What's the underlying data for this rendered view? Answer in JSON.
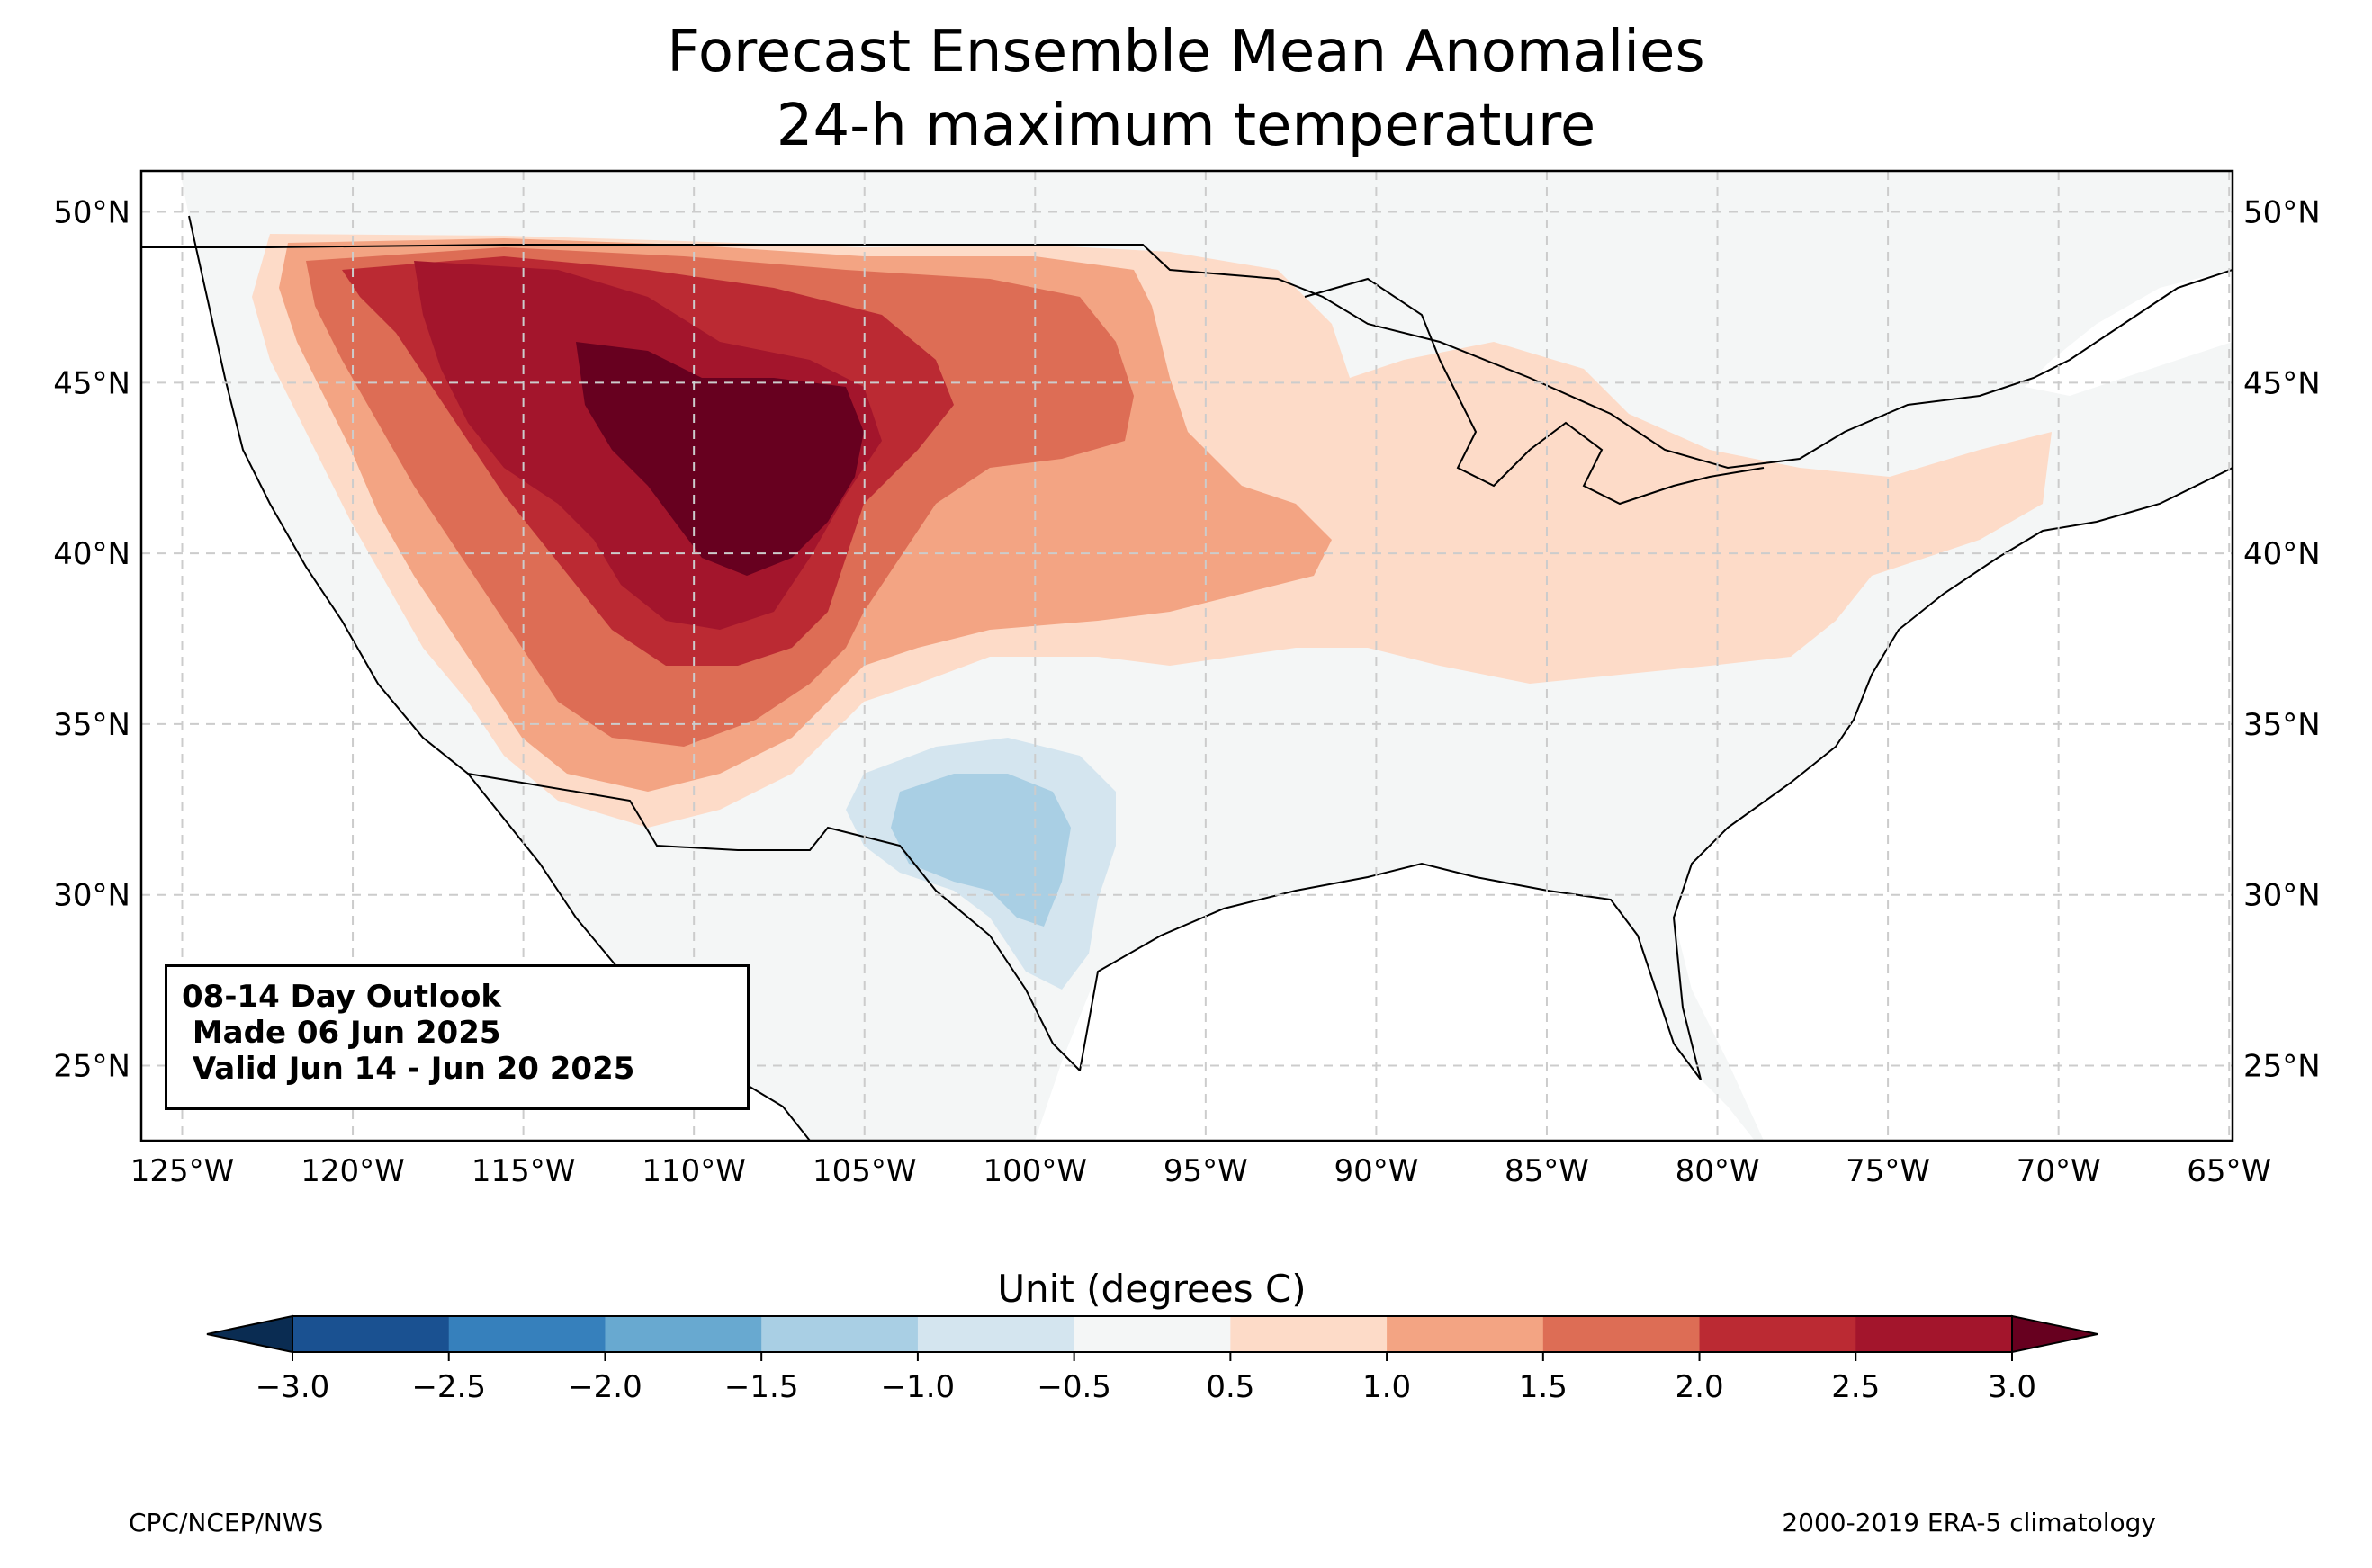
{
  "title": {
    "line1": "Forecast Ensemble Mean Anomalies",
    "line2": "24-h maximum temperature"
  },
  "map": {
    "lat_ticks": [
      "50°N",
      "45°N",
      "40°N",
      "35°N",
      "30°N",
      "25°N"
    ],
    "lon_ticks": [
      "125°W",
      "120°W",
      "115°W",
      "110°W",
      "105°W",
      "100°W",
      "95°W",
      "90°W",
      "85°W",
      "80°W",
      "75°W",
      "70°W",
      "65°W"
    ],
    "lat_values": [
      50,
      45,
      40,
      35,
      30,
      25
    ],
    "lon_values": [
      -125,
      -120,
      -115,
      -110,
      -105,
      -100,
      -95,
      -90,
      -85,
      -80,
      -75,
      -70,
      -65
    ],
    "extent": {
      "lon": [
        -126.2,
        -64.9
      ],
      "lat": [
        22.8,
        51.2
      ]
    },
    "gridlines": true,
    "background_color": "#f4f6f6"
  },
  "infobox": {
    "line1": "08-14 Day Outlook",
    "line2": " Made 06 Jun 2025",
    "line3": " Valid Jun 14 - Jun 20 2025"
  },
  "colorbar": {
    "title": "Unit (degrees C)",
    "tick_labels": [
      "−3.0",
      "−2.5",
      "−2.0",
      "−1.5",
      "−1.0",
      "−0.5",
      "0.5",
      "1.0",
      "1.5",
      "2.0",
      "2.5",
      "3.0"
    ],
    "colors": [
      "#1a5191",
      "#3680bc",
      "#68a9d0",
      "#a9cfe4",
      "#d4e5ef",
      "#f4f6f6",
      "#fddbc8",
      "#f3a483",
      "#dd6d55",
      "#bb2a33",
      "#a3152c"
    ],
    "under_color": "#0a2c52",
    "over_color": "#67001f"
  },
  "footer": {
    "left": "CPC/NCEP/NWS",
    "right": "2000-2019 ERA-5 climatology"
  }
}
